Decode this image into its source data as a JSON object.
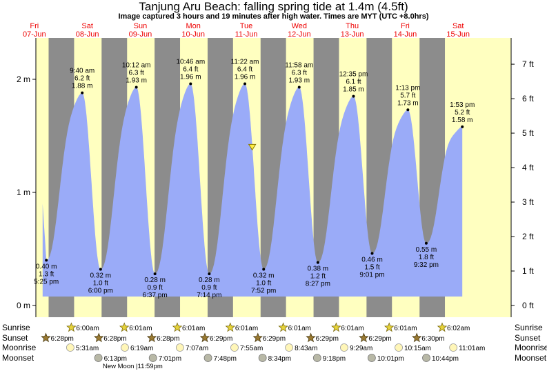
{
  "chart_data": {
    "type": "area",
    "title": "Tanjung Aru Beach: falling  spring tide at 1.4m (4.5ft)",
    "subtitle": "Image captured 3 hours and 19 minutes after high water. Times are MYT (UTC +8.0hrs)",
    "colors": {
      "tide": "#9aabf8",
      "day": "#ffffc0",
      "night": "#8c8c8c",
      "day_label": "#ee0000"
    },
    "days": [
      {
        "dow": "Fri",
        "date": "07-Jun"
      },
      {
        "dow": "Sat",
        "date": "08-Jun"
      },
      {
        "dow": "Sun",
        "date": "09-Jun"
      },
      {
        "dow": "Mon",
        "date": "10-Jun"
      },
      {
        "dow": "Tue",
        "date": "11-Jun"
      },
      {
        "dow": "Wed",
        "date": "12-Jun"
      },
      {
        "dow": "Thu",
        "date": "13-Jun"
      },
      {
        "dow": "Fri",
        "date": "14-Jun"
      },
      {
        "dow": "Sat",
        "date": "15-Jun"
      }
    ],
    "y_left": {
      "unit": "m",
      "ticks": [
        "0 m",
        "1 m",
        "2 m"
      ],
      "ylim": [
        0,
        2.35
      ]
    },
    "y_right": {
      "unit": "ft",
      "ticks": [
        "0 ft",
        "1 ft",
        "2 ft",
        "3 ft",
        "4 ft",
        "5 ft",
        "6 ft",
        "7 ft"
      ]
    },
    "tides": [
      {
        "type": "low",
        "time": "5:25 pm",
        "m": "0.40 m",
        "ft": "1.3 ft",
        "value": 0.4,
        "day_offset": 0.726
      },
      {
        "type": "high",
        "time": "9:40 am",
        "m": "1.88 m",
        "ft": "6.2 ft",
        "value": 1.88,
        "day_offset": 1.403
      },
      {
        "type": "low",
        "time": "6:00 pm",
        "m": "0.32 m",
        "ft": "1.0 ft",
        "value": 0.32,
        "day_offset": 1.75
      },
      {
        "type": "high",
        "time": "10:12 am",
        "m": "1.93 m",
        "ft": "6.3 ft",
        "value": 1.93,
        "day_offset": 2.425
      },
      {
        "type": "low",
        "time": "6:37 pm",
        "m": "0.28 m",
        "ft": "0.9 ft",
        "value": 0.28,
        "day_offset": 2.776
      },
      {
        "type": "high",
        "time": "10:46 am",
        "m": "1.96 m",
        "ft": "6.4 ft",
        "value": 1.96,
        "day_offset": 3.449
      },
      {
        "type": "low",
        "time": "7:14 pm",
        "m": "0.28 m",
        "ft": "0.9 ft",
        "value": 0.28,
        "day_offset": 3.801
      },
      {
        "type": "high",
        "time": "11:22 am",
        "m": "1.96 m",
        "ft": "6.4 ft",
        "value": 1.96,
        "day_offset": 4.474
      },
      {
        "type": "low",
        "time": "7:52 pm",
        "m": "0.32 m",
        "ft": "1.0 ft",
        "value": 0.32,
        "day_offset": 4.828
      },
      {
        "type": "high",
        "time": "11:58 am",
        "m": "1.93 m",
        "ft": "6.3 ft",
        "value": 1.93,
        "day_offset": 5.499
      },
      {
        "type": "low",
        "time": "8:27 pm",
        "m": "0.38 m",
        "ft": "1.2 ft",
        "value": 0.38,
        "day_offset": 5.852
      },
      {
        "type": "high",
        "time": "12:35 pm",
        "m": "1.85 m",
        "ft": "6.1 ft",
        "value": 1.85,
        "day_offset": 6.524
      },
      {
        "type": "low",
        "time": "9:01 pm",
        "m": "0.46 m",
        "ft": "1.5 ft",
        "value": 0.46,
        "day_offset": 6.876
      },
      {
        "type": "high",
        "time": "1:13 pm",
        "m": "1.73 m",
        "ft": "5.7 ft",
        "value": 1.73,
        "day_offset": 7.551
      },
      {
        "type": "low",
        "time": "9:32 pm",
        "m": "0.55 m",
        "ft": "1.8 ft",
        "value": 0.55,
        "day_offset": 7.897
      },
      {
        "type": "high",
        "time": "1:53 pm",
        "m": "1.58 m",
        "ft": "5.2 ft",
        "value": 1.58,
        "day_offset": 8.578
      }
    ],
    "current": {
      "value": 1.4,
      "day_offset": 4.612
    },
    "row_labels": [
      "Sunrise",
      "Sunset",
      "Moonrise",
      "Moonset"
    ],
    "sunrise": [
      {
        "time": "6:00am",
        "day_offset": 1.25
      },
      {
        "time": "6:01am",
        "day_offset": 2.25
      },
      {
        "time": "6:01am",
        "day_offset": 3.25
      },
      {
        "time": "6:01am",
        "day_offset": 4.25
      },
      {
        "time": "6:01am",
        "day_offset": 5.25
      },
      {
        "time": "6:01am",
        "day_offset": 6.25
      },
      {
        "time": "6:01am",
        "day_offset": 7.25
      },
      {
        "time": "6:02am",
        "day_offset": 8.25
      }
    ],
    "sunset": [
      {
        "time": "6:28pm",
        "day_offset": 0.769
      },
      {
        "time": "6:28pm",
        "day_offset": 1.769
      },
      {
        "time": "6:28pm",
        "day_offset": 2.769
      },
      {
        "time": "6:29pm",
        "day_offset": 3.77
      },
      {
        "time": "6:29pm",
        "day_offset": 4.77
      },
      {
        "time": "6:29pm",
        "day_offset": 5.77
      },
      {
        "time": "6:29pm",
        "day_offset": 6.77
      },
      {
        "time": "6:30pm",
        "day_offset": 7.771
      }
    ],
    "moonrise": [
      {
        "time": "5:31am",
        "day_offset": 1.23
      },
      {
        "time": "6:19am",
        "day_offset": 2.26
      },
      {
        "time": "7:07am",
        "day_offset": 3.3
      },
      {
        "time": "7:55am",
        "day_offset": 4.33
      },
      {
        "time": "8:43am",
        "day_offset": 5.36
      },
      {
        "time": "9:29am",
        "day_offset": 6.4
      },
      {
        "time": "10:15am",
        "day_offset": 7.43
      },
      {
        "time": "11:01am",
        "day_offset": 8.46
      }
    ],
    "moonset": [
      {
        "time": "6:13pm",
        "day_offset": 1.76
      },
      {
        "time": "7:01pm",
        "day_offset": 2.79
      },
      {
        "time": "7:48pm",
        "day_offset": 3.83
      },
      {
        "time": "8:34pm",
        "day_offset": 4.86
      },
      {
        "time": "9:18pm",
        "day_offset": 5.89
      },
      {
        "time": "10:01pm",
        "day_offset": 6.92
      },
      {
        "time": "10:44pm",
        "day_offset": 7.95
      }
    ],
    "moon_phase": {
      "label": "New Moon",
      "time": "11:59pm"
    }
  }
}
